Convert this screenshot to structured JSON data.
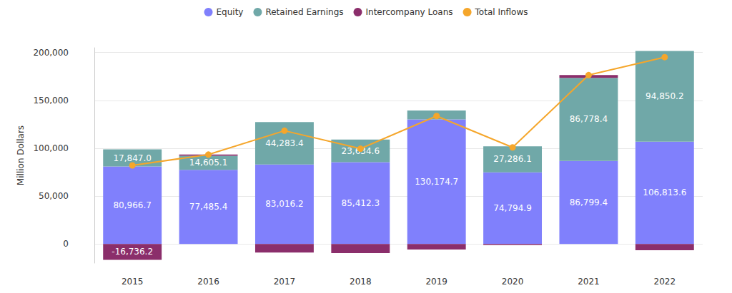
{
  "chart_data": {
    "type": "bar",
    "stacked": true,
    "data_labels": true,
    "grid": true,
    "legend": "top",
    "y_label": "Million Dollars",
    "categories": [
      "2015",
      "2016",
      "2017",
      "2018",
      "2019",
      "2020",
      "2021",
      "2022"
    ],
    "ylim": [
      -20000,
      205000
    ],
    "yticks": [
      {
        "value": 0,
        "label": "0"
      },
      {
        "value": 50000,
        "label": "50,000"
      },
      {
        "value": 100000,
        "label": "100,000"
      },
      {
        "value": 150000,
        "label": "150,000"
      },
      {
        "value": 200000,
        "label": "200,000"
      }
    ],
    "series": [
      {
        "name": "Equity",
        "type": "bar",
        "color": "#8080fc",
        "values": [
          80966.7,
          77485.4,
          83016.2,
          85412.3,
          130174.7,
          74794.9,
          86799.4,
          106813.6
        ],
        "value_labels": [
          "80,966.7",
          "77,485.4",
          "83,016.2",
          "85,412.3",
          "130,174.7",
          "74,794.9",
          "86,799.4",
          "106,813.6"
        ]
      },
      {
        "name": "Retained Earnings",
        "type": "bar",
        "color": "#70a8a8",
        "values": [
          17847.0,
          14605.1,
          44283.4,
          23634.6,
          9300,
          27286.1,
          86778.4,
          94850.2
        ],
        "value_labels": [
          "17,847.0",
          "14,605.1",
          "44,283.4",
          "23,634.6",
          null,
          "27,286.1",
          "86,778.4",
          "94,850.2"
        ]
      },
      {
        "name": "Intercompany Loans",
        "type": "bar",
        "color": "#8b2e6b",
        "values": [
          -16736.2,
          1300,
          -9000,
          -9500,
          -5800,
          -1200,
          2900,
          -6500
        ],
        "value_labels": [
          "-16,736.2",
          null,
          null,
          null,
          null,
          null,
          null,
          null
        ]
      },
      {
        "name": "Total Inflows",
        "type": "line",
        "color": "#f5a62b",
        "marker": "circle",
        "values": [
          82077.5,
          93390.5,
          118299.6,
          99546.9,
          133674.7,
          100881.0,
          176477.8,
          195163.8
        ]
      }
    ]
  }
}
